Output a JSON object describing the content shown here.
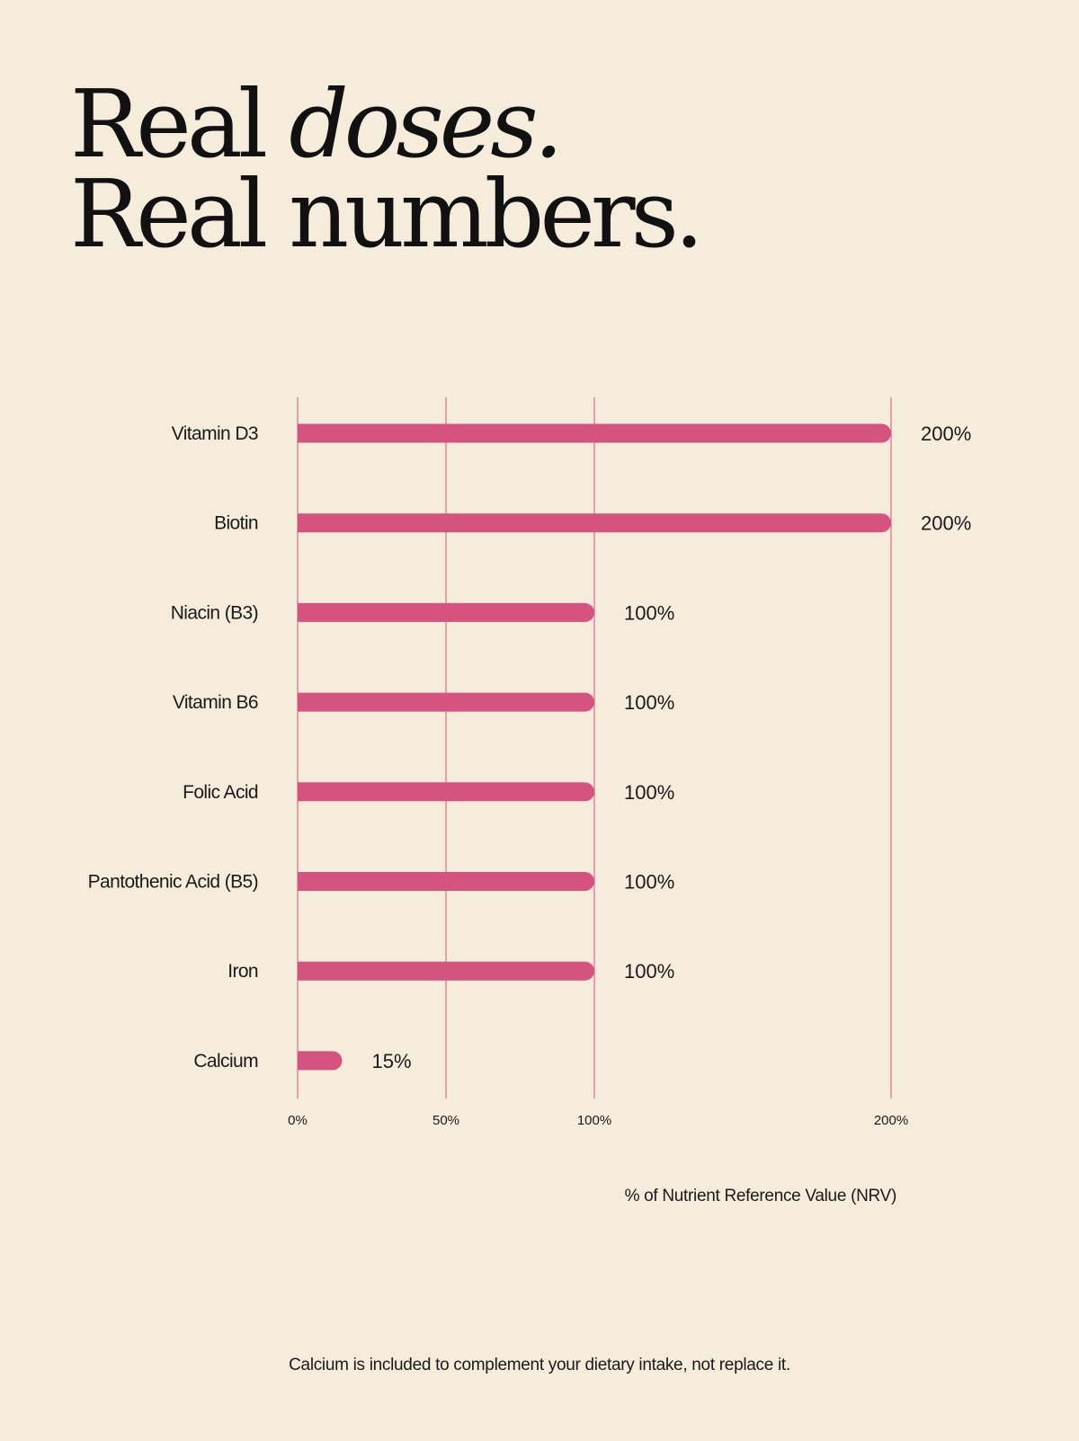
{
  "headline": {
    "line1_plain": "Real ",
    "line1_italic": "doses.",
    "line2": "Real numbers."
  },
  "chart_data": {
    "type": "bar",
    "orientation": "horizontal",
    "categories": [
      "Vitamin D3",
      "Biotin",
      "Niacin (B3)",
      "Vitamin B6",
      "Folic Acid",
      "Pantothenic Acid (B5)",
      "Iron",
      "Calcium"
    ],
    "values": [
      200,
      200,
      100,
      100,
      100,
      100,
      100,
      15
    ],
    "value_labels": [
      "200%",
      "200%",
      "100%",
      "100%",
      "100%",
      "100%",
      "100%",
      "15%"
    ],
    "xticks": [
      0,
      50,
      100,
      200
    ],
    "xtick_labels": [
      "0%",
      "50%",
      "100%",
      "200%"
    ],
    "xlim": [
      0,
      200
    ],
    "xlabel": "% of Nutrient Reference Value (NRV)",
    "grid": true,
    "bar_color": "#d4547f",
    "grid_color": "#d4547f"
  },
  "footnote": "Calcium is included to complement your dietary intake, not replace it."
}
